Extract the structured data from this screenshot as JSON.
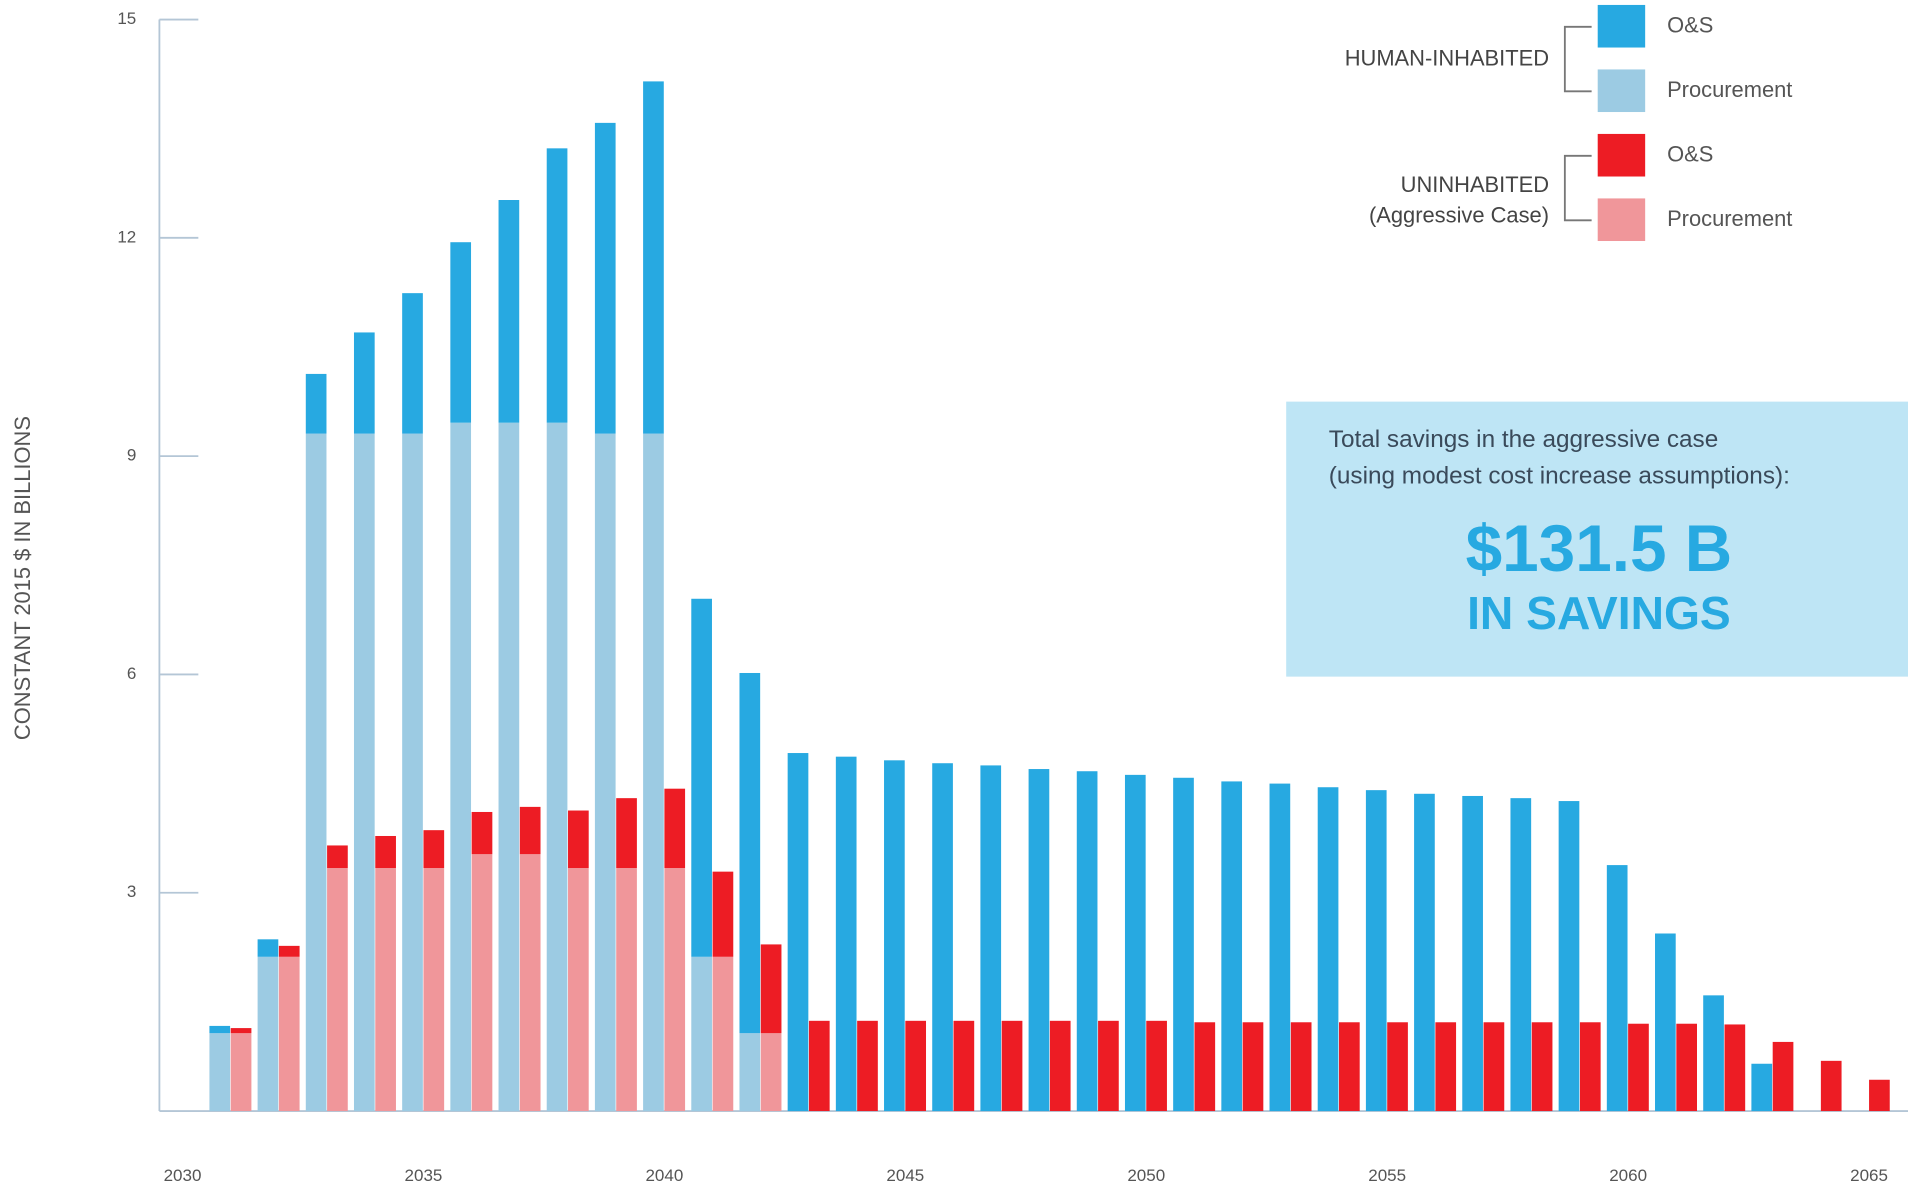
{
  "chart_data": {
    "type": "grouped-stacked-bar",
    "y_label": "CONSTANT 2015 $ IN BILLIONS",
    "x": [
      2031,
      2032,
      2033,
      2034,
      2035,
      2036,
      2037,
      2038,
      2039,
      2040,
      2041,
      2042,
      2043,
      2044,
      2045,
      2046,
      2047,
      2048,
      2049,
      2050,
      2051,
      2052,
      2053,
      2054,
      2055,
      2056,
      2057,
      2058,
      2059,
      2060,
      2061,
      2062,
      2063,
      2064,
      2065
    ],
    "xlim": [
      2030,
      2065
    ],
    "xticks": [
      2030,
      2035,
      2040,
      2045,
      2050,
      2055,
      2060,
      2065
    ],
    "ylim": [
      0,
      15
    ],
    "yticks": [
      3,
      6,
      9,
      12,
      15
    ],
    "groups": [
      [
        "HUMAN-INHABITED"
      ],
      [
        "UNINHABITED",
        "(Aggressive Case)"
      ]
    ],
    "series": [
      {
        "name": "O&S",
        "color": "#27a9e1",
        "group": 0,
        "values": [
          0.1,
          0.24,
          0.82,
          1.39,
          1.93,
          2.48,
          3.06,
          3.77,
          4.27,
          4.84,
          4.92,
          4.95,
          4.92,
          4.87,
          4.82,
          4.78,
          4.75,
          4.7,
          4.67,
          4.62,
          4.58,
          4.53,
          4.5,
          4.45,
          4.41,
          4.36,
          4.33,
          4.3,
          4.26,
          3.38,
          2.44,
          1.59,
          0.65,
          0,
          0
        ]
      },
      {
        "name": "Procurement",
        "color": "#9ccbe3",
        "group": 0,
        "values": [
          1.07,
          2.12,
          9.31,
          9.31,
          9.31,
          9.46,
          9.46,
          9.46,
          9.31,
          9.31,
          2.12,
          1.07,
          0,
          0,
          0,
          0,
          0,
          0,
          0,
          0,
          0,
          0,
          0,
          0,
          0,
          0,
          0,
          0,
          0,
          0,
          0,
          0,
          0,
          0,
          0
        ]
      },
      {
        "name": "O&S",
        "color": "#ed1c24",
        "group": 1,
        "values": [
          0.07,
          0.15,
          0.31,
          0.44,
          0.52,
          0.58,
          0.65,
          0.79,
          0.96,
          1.09,
          1.17,
          1.22,
          1.24,
          1.24,
          1.24,
          1.24,
          1.24,
          1.24,
          1.24,
          1.24,
          1.22,
          1.22,
          1.22,
          1.22,
          1.22,
          1.22,
          1.22,
          1.22,
          1.22,
          1.2,
          1.2,
          1.19,
          0.95,
          0.69,
          0.43
        ]
      },
      {
        "name": "Procurement",
        "color": "#f0969a",
        "group": 1,
        "values": [
          1.07,
          2.12,
          3.34,
          3.34,
          3.34,
          3.53,
          3.53,
          3.34,
          3.34,
          3.34,
          2.12,
          1.07,
          0,
          0,
          0,
          0,
          0,
          0,
          0,
          0,
          0,
          0,
          0,
          0,
          0,
          0,
          0,
          0,
          0,
          0,
          0,
          0,
          0,
          0,
          0
        ]
      }
    ],
    "annotation": {
      "lines": [
        "Total savings in the aggressive case",
        "(using modest cost increase assumptions):"
      ],
      "headline": "$131.5 B",
      "subheadline": "IN SAVINGS"
    }
  }
}
